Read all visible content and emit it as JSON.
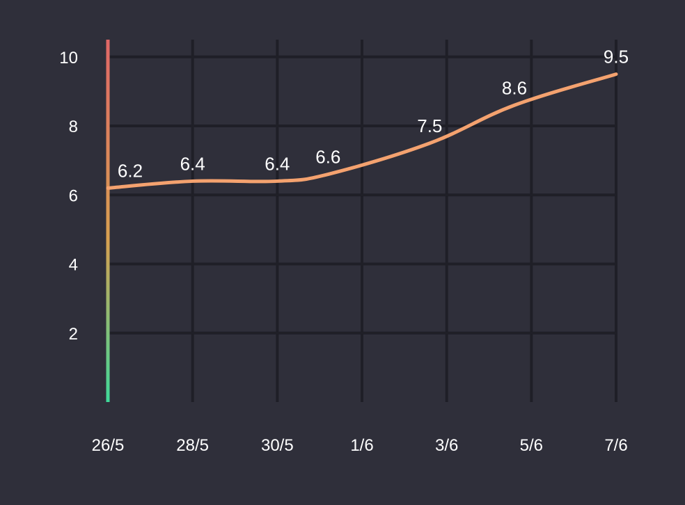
{
  "chart_data": {
    "type": "line",
    "x": [
      "26/5",
      "28/5",
      "30/5",
      "1/6",
      "3/6",
      "5/6",
      "7/6"
    ],
    "points": [
      {
        "x": 0,
        "y": 6.2,
        "label": "6.2"
      },
      {
        "x": 1,
        "y": 6.4,
        "label": "6.4"
      },
      {
        "x": 2,
        "y": 6.4,
        "label": "6.4"
      },
      {
        "x": 2.6,
        "y": 6.6,
        "label": "6.6"
      },
      {
        "x": 3.8,
        "y": 7.5,
        "label": "7.5"
      },
      {
        "x": 4.8,
        "y": 8.6,
        "label": "8.6"
      },
      {
        "x": 6,
        "y": 9.5,
        "label": "9.5"
      }
    ],
    "yticks": [
      "2",
      "4",
      "6",
      "8",
      "10"
    ],
    "ylim": [
      0,
      10.5
    ],
    "grid": true,
    "colors": {
      "background": "#2f2f3a",
      "grid": "#1f1f27",
      "line": "#f4a26f",
      "text": "#ffffff",
      "axis_gradient_top": "#e06767",
      "axis_gradient_mid": "#d8a050",
      "axis_gradient_bottom": "#3fd99a"
    }
  }
}
